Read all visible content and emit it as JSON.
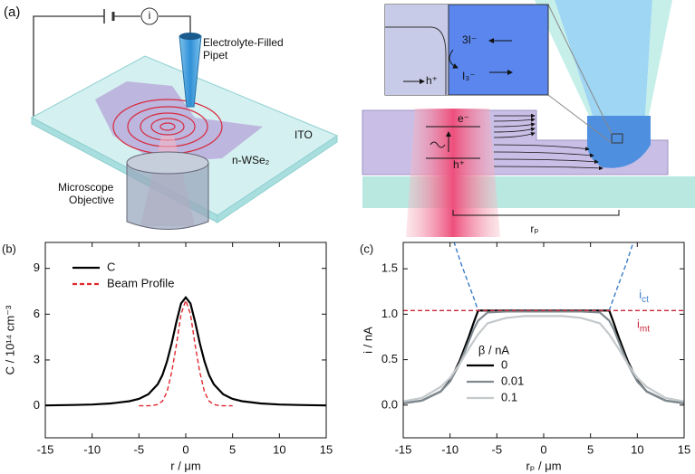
{
  "diagram": {
    "panel": "(a)",
    "current_symbol": "i",
    "pipet_label": [
      "Electrolyte-Filled",
      "Pipet"
    ],
    "substrate": "ITO",
    "flake": "n-WSe₂",
    "objective_label": [
      "Microscope",
      "Objective"
    ],
    "inset": {
      "hole": "h⁺",
      "iodide": "3I⁻",
      "triiodide": "I₃⁻"
    },
    "electron": "e⁻",
    "hole": "h⁺",
    "radius": "rₚ"
  },
  "chart_data": [
    {
      "type": "line",
      "panel": "(b)",
      "xlabel": "r / μm",
      "ylabel": "C / 10¹⁴ cm⁻³",
      "xlim": [
        -15,
        15
      ],
      "xticks": [
        -15,
        -10,
        -5,
        0,
        5,
        10,
        15
      ],
      "ylim": [
        -2.1,
        10.7
      ],
      "yticks": [
        0,
        3,
        6,
        9
      ],
      "legend": "upper left",
      "series": [
        {
          "name": "C",
          "color": "#000000",
          "dashed": false,
          "x": [
            -15,
            -12,
            -10,
            -8,
            -6,
            -5,
            -4,
            -3,
            -2.5,
            -2,
            -1.5,
            -1,
            -0.5,
            0,
            0.5,
            1,
            1.5,
            2,
            2.5,
            3,
            4,
            5,
            6,
            8,
            10,
            12,
            15
          ],
          "values": [
            0.02,
            0.05,
            0.08,
            0.15,
            0.3,
            0.45,
            0.75,
            1.4,
            2.0,
            2.9,
            4.1,
            5.5,
            6.7,
            7.1,
            6.7,
            5.5,
            4.1,
            2.9,
            2.0,
            1.4,
            0.75,
            0.45,
            0.3,
            0.15,
            0.08,
            0.05,
            0.02
          ]
        },
        {
          "name": "Beam Profile",
          "color": "#e0282e",
          "dashed": true,
          "x": [
            -5,
            -4.5,
            -4,
            -3.5,
            -3,
            -2.5,
            -2,
            -1.5,
            -1,
            -0.5,
            0,
            0.5,
            1,
            1.5,
            2,
            2.5,
            3,
            3.5,
            4,
            4.5,
            5
          ],
          "values": [
            0,
            0,
            0,
            0.02,
            0.08,
            0.3,
            0.9,
            2.2,
            4.0,
            6.0,
            6.9,
            6.0,
            4.0,
            2.2,
            0.9,
            0.3,
            0.08,
            0.02,
            0,
            0,
            0
          ]
        }
      ]
    },
    {
      "type": "line",
      "panel": "(c)",
      "xlabel": "rₚ / μm",
      "ylabel": "i / nA",
      "xlim": [
        -15,
        15
      ],
      "xticks": [
        -15,
        -10,
        -5,
        0,
        5,
        10,
        15
      ],
      "ylim": [
        -0.36,
        1.79
      ],
      "yticks": [
        {
          "value": 0,
          "label": "0.0"
        },
        {
          "value": 0.5,
          "label": "0.5"
        },
        {
          "value": 1,
          "label": "1.0"
        },
        {
          "value": 1.5,
          "label": "1.5"
        }
      ],
      "legend": "lower center",
      "legend_title": "β / nA",
      "series": [
        {
          "name": "0",
          "color": "#000000",
          "dashed": false,
          "x": [
            -15,
            -13,
            -11,
            -10,
            -9,
            -8,
            -7.5,
            -7,
            -6,
            -4,
            -2,
            0,
            2,
            4,
            6,
            7,
            7.5,
            8,
            9,
            10,
            11,
            13,
            15
          ],
          "values": [
            0.02,
            0.05,
            0.15,
            0.27,
            0.48,
            0.75,
            0.9,
            1.04,
            1.04,
            1.04,
            1.04,
            1.04,
            1.04,
            1.04,
            1.04,
            1.04,
            0.9,
            0.75,
            0.48,
            0.27,
            0.15,
            0.05,
            0.02
          ]
        },
        {
          "name": "0.01",
          "color": "#7f8a90",
          "dashed": false,
          "x": [
            -15,
            -13,
            -11,
            -10,
            -9,
            -8,
            -7.5,
            -7,
            -6,
            -4,
            -2,
            0,
            2,
            4,
            6,
            7,
            7.5,
            8,
            9,
            10,
            11,
            13,
            15
          ],
          "values": [
            0.02,
            0.05,
            0.15,
            0.26,
            0.45,
            0.7,
            0.83,
            0.93,
            1.02,
            1.03,
            1.03,
            1.03,
            1.03,
            1.03,
            1.02,
            0.93,
            0.83,
            0.7,
            0.45,
            0.26,
            0.15,
            0.05,
            0.02
          ]
        },
        {
          "name": "0.1",
          "color": "#c4c9cc",
          "dashed": false,
          "x": [
            -15,
            -13,
            -11,
            -10,
            -9,
            -8,
            -7.5,
            -7,
            -6,
            -4,
            -2,
            0,
            2,
            4,
            6,
            7,
            7.5,
            8,
            9,
            10,
            11,
            13,
            15
          ],
          "values": [
            0.04,
            0.08,
            0.2,
            0.3,
            0.45,
            0.62,
            0.7,
            0.78,
            0.9,
            0.96,
            0.98,
            0.98,
            0.98,
            0.96,
            0.9,
            0.78,
            0.7,
            0.62,
            0.45,
            0.3,
            0.2,
            0.08,
            0.04
          ]
        },
        {
          "label": {
            "base": "i",
            "sub": "ct"
          },
          "color": "#3a7cc8",
          "dashed": true,
          "x": [
            -9.6,
            -8.8,
            -8,
            -7.4,
            -7,
            0,
            7,
            7.4,
            8,
            8.8,
            9.6
          ],
          "values": [
            1.8,
            1.55,
            1.33,
            1.16,
            1.04,
            null,
            1.04,
            1.16,
            1.33,
            1.55,
            1.8
          ]
        },
        {
          "label": {
            "base": "i",
            "sub": "mt"
          },
          "color": "#c8283c",
          "dashed": true,
          "x": [
            -15,
            15
          ],
          "values": [
            1.04,
            1.04
          ]
        }
      ]
    }
  ]
}
